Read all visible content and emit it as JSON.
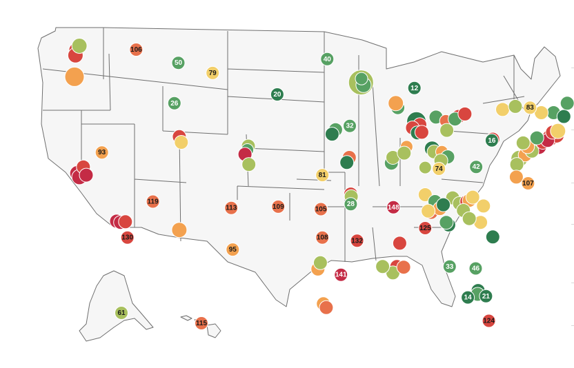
{
  "map": {
    "colors": {
      "dark-green": "#2e7d4f",
      "green": "#57a163",
      "yellow-green": "#a8c05e",
      "yellow": "#f2cf6a",
      "orange": "#f3a14f",
      "red-orange": "#e8714b",
      "red": "#d8463f",
      "crimson": "#c42b45"
    },
    "labeled_markers": [
      {
        "label": "106",
        "lon": -116.3,
        "lat": 47.65,
        "color": "red-orange"
      },
      {
        "label": "50",
        "lon": -112.0,
        "lat": 46.6,
        "color": "green"
      },
      {
        "label": "79",
        "lon": -108.5,
        "lat": 45.8,
        "color": "yellow"
      },
      {
        "label": "40",
        "lon": -96.8,
        "lat": 46.9,
        "color": "green"
      },
      {
        "label": "26",
        "lon": -112.4,
        "lat": 43.4,
        "color": "green"
      },
      {
        "label": "20",
        "lon": -101.9,
        "lat": 44.1,
        "color": "dark-green"
      },
      {
        "label": "12",
        "lon": -87.9,
        "lat": 44.6,
        "color": "dark-green"
      },
      {
        "label": "83",
        "lon": -76.1,
        "lat": 43.05,
        "color": "yellow"
      },
      {
        "label": "32",
        "lon": -94.5,
        "lat": 41.6,
        "color": "green"
      },
      {
        "label": "16",
        "lon": -80.0,
        "lat": 40.45,
        "color": "dark-green"
      },
      {
        "label": "93",
        "lon": -119.8,
        "lat": 39.5,
        "color": "orange"
      },
      {
        "label": "42",
        "lon": -81.6,
        "lat": 38.35,
        "color": "green"
      },
      {
        "label": "74",
        "lon": -85.4,
        "lat": 38.2,
        "color": "yellow"
      },
      {
        "label": "81",
        "lon": -97.3,
        "lat": 37.7,
        "color": "yellow"
      },
      {
        "label": "107",
        "lon": -76.3,
        "lat": 37.05,
        "color": "orange"
      },
      {
        "label": "119",
        "lon": -114.6,
        "lat": 35.6,
        "color": "red-orange"
      },
      {
        "label": "28",
        "lon": -94.4,
        "lat": 35.4,
        "color": "green"
      },
      {
        "label": "105",
        "lon": -97.45,
        "lat": 35.0,
        "color": "red-orange"
      },
      {
        "label": "113",
        "lon": -106.6,
        "lat": 35.1,
        "color": "red-orange"
      },
      {
        "label": "109",
        "lon": -101.8,
        "lat": 35.2,
        "color": "red-orange"
      },
      {
        "label": "148",
        "lon": -90.05,
        "lat": 35.15,
        "color": "crimson"
      },
      {
        "label": "125",
        "lon": -86.8,
        "lat": 33.5,
        "color": "red"
      },
      {
        "label": "130",
        "lon": -117.2,
        "lat": 32.75,
        "color": "red"
      },
      {
        "label": "108",
        "lon": -97.3,
        "lat": 32.75,
        "color": "red-orange"
      },
      {
        "label": "132",
        "lon": -93.75,
        "lat": 32.5,
        "color": "red"
      },
      {
        "label": "95",
        "lon": -106.45,
        "lat": 31.8,
        "color": "orange"
      },
      {
        "label": "33",
        "lon": -84.3,
        "lat": 30.45,
        "color": "green"
      },
      {
        "label": "46",
        "lon": -81.65,
        "lat": 30.3,
        "color": "green"
      },
      {
        "label": "141",
        "lon": -95.4,
        "lat": 29.8,
        "color": "crimson"
      },
      {
        "label": "14",
        "lon": -82.45,
        "lat": 28.0,
        "color": "dark-green"
      },
      {
        "label": "21",
        "lon": -80.6,
        "lat": 28.1,
        "color": "dark-green"
      },
      {
        "label": "124",
        "lon": -80.3,
        "lat": 26.15,
        "color": "red"
      }
    ],
    "alaska_marker": {
      "label": "61",
      "color": "yellow-green"
    },
    "hawaii_marker": {
      "label": "115",
      "color": "red-orange"
    },
    "unlabeled_markers": [
      {
        "lon": -122.4,
        "lat": 47.6,
        "size": 11,
        "color": "red"
      },
      {
        "lon": -122.5,
        "lat": 47.2,
        "size": 11,
        "color": "red"
      },
      {
        "lon": -122.1,
        "lat": 47.95,
        "size": 11,
        "color": "yellow-green"
      },
      {
        "lon": -122.6,
        "lat": 45.5,
        "size": 14,
        "color": "orange"
      },
      {
        "lon": -122.3,
        "lat": 37.85,
        "size": 11,
        "color": "crimson"
      },
      {
        "lon": -122.1,
        "lat": 37.55,
        "size": 11,
        "color": "crimson"
      },
      {
        "lon": -121.7,
        "lat": 38.35,
        "size": 10,
        "color": "red"
      },
      {
        "lon": -121.4,
        "lat": 37.7,
        "size": 10,
        "color": "crimson"
      },
      {
        "lon": -118.3,
        "lat": 34.05,
        "size": 10,
        "color": "crimson"
      },
      {
        "lon": -117.9,
        "lat": 33.95,
        "size": 10,
        "color": "crimson"
      },
      {
        "lon": -117.4,
        "lat": 34.0,
        "size": 10,
        "color": "red"
      },
      {
        "lon": -111.9,
        "lat": 40.75,
        "size": 10,
        "color": "red"
      },
      {
        "lon": -111.7,
        "lat": 40.3,
        "size": 10,
        "color": "yellow"
      },
      {
        "lon": -111.9,
        "lat": 33.35,
        "size": 11,
        "color": "orange"
      },
      {
        "lon": -104.85,
        "lat": 40.0,
        "size": 10,
        "color": "yellow-green"
      },
      {
        "lon": -104.95,
        "lat": 39.7,
        "size": 9,
        "color": "green"
      },
      {
        "lon": -105.2,
        "lat": 39.35,
        "size": 10,
        "color": "crimson"
      },
      {
        "lon": -104.8,
        "lat": 38.55,
        "size": 10,
        "color": "yellow-green"
      },
      {
        "lon": -93.35,
        "lat": 45.05,
        "size": 18,
        "color": "yellow-green"
      },
      {
        "lon": -93.1,
        "lat": 44.85,
        "size": 11,
        "color": "green"
      },
      {
        "lon": -93.3,
        "lat": 45.35,
        "size": 9,
        "color": "green"
      },
      {
        "lon": -95.95,
        "lat": 41.3,
        "size": 10,
        "color": "green"
      },
      {
        "lon": -96.3,
        "lat": 40.95,
        "size": 10,
        "color": "dark-green"
      },
      {
        "lon": -94.55,
        "lat": 39.1,
        "size": 10,
        "color": "red-orange"
      },
      {
        "lon": -94.8,
        "lat": 38.7,
        "size": 10,
        "color": "dark-green"
      },
      {
        "lon": -90.25,
        "lat": 38.65,
        "size": 10,
        "color": "green"
      },
      {
        "lon": -90.1,
        "lat": 39.1,
        "size": 10,
        "color": "yellow-green"
      },
      {
        "lon": -87.7,
        "lat": 41.95,
        "size": 14,
        "color": "dark-green"
      },
      {
        "lon": -87.35,
        "lat": 41.7,
        "size": 10,
        "color": "red"
      },
      {
        "lon": -88.1,
        "lat": 41.45,
        "size": 10,
        "color": "red"
      },
      {
        "lon": -87.6,
        "lat": 41.05,
        "size": 10,
        "color": "dark-green"
      },
      {
        "lon": -87.15,
        "lat": 41.1,
        "size": 10,
        "color": "red"
      },
      {
        "lon": -89.6,
        "lat": 43.05,
        "size": 10,
        "color": "green"
      },
      {
        "lon": -89.8,
        "lat": 43.4,
        "size": 11,
        "color": "orange"
      },
      {
        "lon": -88.7,
        "lat": 39.95,
        "size": 9,
        "color": "orange"
      },
      {
        "lon": -88.95,
        "lat": 39.45,
        "size": 10,
        "color": "yellow-green"
      },
      {
        "lon": -85.7,
        "lat": 42.3,
        "size": 10,
        "color": "green"
      },
      {
        "lon": -84.7,
        "lat": 42.0,
        "size": 9,
        "color": "red-orange"
      },
      {
        "lon": -83.4,
        "lat": 42.35,
        "size": 10,
        "color": "red"
      },
      {
        "lon": -83.75,
        "lat": 42.15,
        "size": 10,
        "color": "green"
      },
      {
        "lon": -82.75,
        "lat": 42.55,
        "size": 10,
        "color": "red"
      },
      {
        "lon": -84.6,
        "lat": 41.25,
        "size": 10,
        "color": "yellow-green"
      },
      {
        "lon": -86.1,
        "lat": 39.8,
        "size": 11,
        "color": "dark-green"
      },
      {
        "lon": -85.9,
        "lat": 39.55,
        "size": 10,
        "color": "yellow-green"
      },
      {
        "lon": -85.1,
        "lat": 39.55,
        "size": 9,
        "color": "orange"
      },
      {
        "lon": -84.5,
        "lat": 39.15,
        "size": 10,
        "color": "green"
      },
      {
        "lon": -85.2,
        "lat": 38.85,
        "size": 10,
        "color": "yellow-green"
      },
      {
        "lon": -86.8,
        "lat": 38.3,
        "size": 9,
        "color": "yellow-green"
      },
      {
        "lon": -79.9,
        "lat": 40.55,
        "size": 10,
        "color": "red"
      },
      {
        "lon": -77.2,
        "lat": 39.0,
        "size": 12,
        "color": "yellow-green"
      },
      {
        "lon": -76.6,
        "lat": 39.3,
        "size": 10,
        "color": "orange"
      },
      {
        "lon": -77.45,
        "lat": 38.55,
        "size": 10,
        "color": "yellow-green"
      },
      {
        "lon": -77.5,
        "lat": 37.55,
        "size": 10,
        "color": "orange"
      },
      {
        "lon": -75.2,
        "lat": 39.95,
        "size": 11,
        "color": "crimson"
      },
      {
        "lon": -74.8,
        "lat": 40.3,
        "size": 10,
        "color": "red"
      },
      {
        "lon": -74.0,
        "lat": 40.7,
        "size": 12,
        "color": "red"
      },
      {
        "lon": -73.4,
        "lat": 40.85,
        "size": 11,
        "color": "red"
      },
      {
        "lon": -74.3,
        "lat": 40.45,
        "size": 10,
        "color": "crimson"
      },
      {
        "lon": -73.8,
        "lat": 41.1,
        "size": 10,
        "color": "red"
      },
      {
        "lon": -73.25,
        "lat": 41.2,
        "size": 11,
        "color": "yellow"
      },
      {
        "lon": -73.7,
        "lat": 42.65,
        "size": 10,
        "color": "green"
      },
      {
        "lon": -72.65,
        "lat": 42.35,
        "size": 10,
        "color": "dark-green"
      },
      {
        "lon": -71.05,
        "lat": 42.35,
        "size": 10,
        "color": "dark-green"
      },
      {
        "lon": -72.3,
        "lat": 43.4,
        "size": 10,
        "color": "green"
      },
      {
        "lon": -78.9,
        "lat": 42.9,
        "size": 10,
        "color": "yellow"
      },
      {
        "lon": -77.6,
        "lat": 43.15,
        "size": 10,
        "color": "yellow-green"
      },
      {
        "lon": -74.95,
        "lat": 42.65,
        "size": 10,
        "color": "yellow"
      },
      {
        "lon": -75.9,
        "lat": 39.6,
        "size": 10,
        "color": "yellow-green"
      },
      {
        "lon": -76.35,
        "lat": 39.95,
        "size": 10,
        "color": "orange"
      },
      {
        "lon": -75.4,
        "lat": 40.65,
        "size": 10,
        "color": "green"
      },
      {
        "lon": -76.8,
        "lat": 40.25,
        "size": 10,
        "color": "yellow-green"
      },
      {
        "lon": -89.4,
        "lat": 32.3,
        "size": 10,
        "color": "red"
      },
      {
        "lon": -89.7,
        "lat": 30.45,
        "size": 10,
        "color": "red"
      },
      {
        "lon": -90.1,
        "lat": 29.95,
        "size": 10,
        "color": "yellow-green"
      },
      {
        "lon": -91.15,
        "lat": 30.45,
        "size": 10,
        "color": "yellow-green"
      },
      {
        "lon": -89.0,
        "lat": 30.4,
        "size": 10,
        "color": "red-orange"
      },
      {
        "lon": -97.75,
        "lat": 30.25,
        "size": 10,
        "color": "orange"
      },
      {
        "lon": -97.5,
        "lat": 30.75,
        "size": 10,
        "color": "yellow-green"
      },
      {
        "lon": -94.4,
        "lat": 36.2,
        "size": 10,
        "color": "red"
      },
      {
        "lon": -94.35,
        "lat": 36.0,
        "size": 10,
        "color": "yellow-green"
      },
      {
        "lon": -97.2,
        "lat": 27.5,
        "size": 10,
        "color": "orange"
      },
      {
        "lon": -96.9,
        "lat": 27.2,
        "size": 10,
        "color": "red-orange"
      },
      {
        "lon": -84.4,
        "lat": 33.75,
        "size": 10,
        "color": "dark-green"
      },
      {
        "lon": -84.65,
        "lat": 33.95,
        "size": 10,
        "color": "green"
      },
      {
        "lon": -86.2,
        "lat": 34.75,
        "size": 10,
        "color": "red-orange"
      },
      {
        "lon": -86.8,
        "lat": 36.15,
        "size": 10,
        "color": "yellow"
      },
      {
        "lon": -85.8,
        "lat": 35.6,
        "size": 10,
        "color": "green"
      },
      {
        "lon": -85.3,
        "lat": 35.05,
        "size": 10,
        "color": "orange"
      },
      {
        "lon": -86.5,
        "lat": 34.85,
        "size": 10,
        "color": "yellow"
      },
      {
        "lon": -84.0,
        "lat": 35.9,
        "size": 10,
        "color": "yellow-green"
      },
      {
        "lon": -83.3,
        "lat": 35.45,
        "size": 10,
        "color": "yellow-green"
      },
      {
        "lon": -82.55,
        "lat": 35.6,
        "size": 10,
        "color": "red"
      },
      {
        "lon": -82.3,
        "lat": 35.7,
        "size": 10,
        "color": "orange"
      },
      {
        "lon": -82.9,
        "lat": 34.9,
        "size": 10,
        "color": "yellow-green"
      },
      {
        "lon": -81.95,
        "lat": 35.95,
        "size": 10,
        "color": "yellow"
      },
      {
        "lon": -80.85,
        "lat": 35.25,
        "size": 10,
        "color": "yellow"
      },
      {
        "lon": -81.15,
        "lat": 33.95,
        "size": 10,
        "color": "yellow"
      },
      {
        "lon": -79.9,
        "lat": 32.8,
        "size": 10,
        "color": "dark-green"
      },
      {
        "lon": -81.4,
        "lat": 28.55,
        "size": 10,
        "color": "dark-green"
      },
      {
        "lon": -81.45,
        "lat": 28.25,
        "size": 10,
        "color": "green"
      },
      {
        "lon": -82.3,
        "lat": 34.25,
        "size": 10,
        "color": "yellow-green"
      },
      {
        "lon": -84.95,
        "lat": 35.35,
        "size": 10,
        "color": "dark-green"
      }
    ]
  }
}
